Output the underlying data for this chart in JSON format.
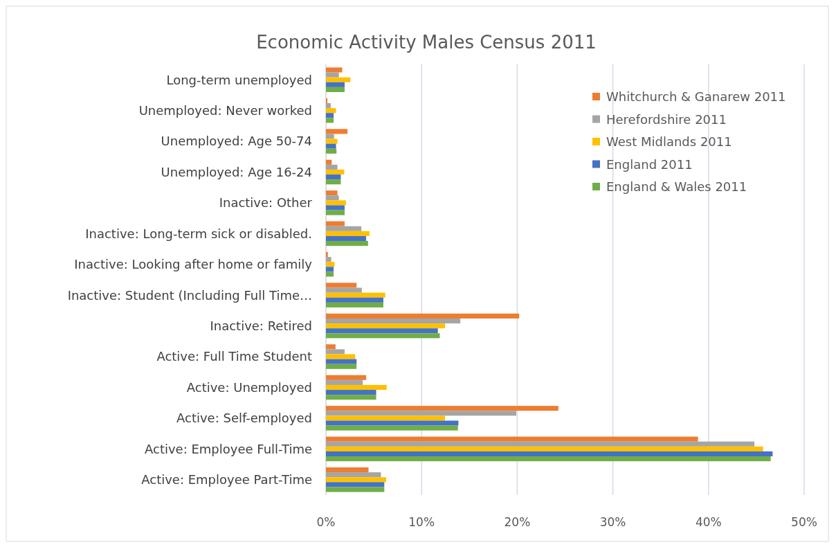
{
  "chart_data": {
    "type": "bar",
    "orientation": "horizontal",
    "title": "Economic Activity Males Census 2011",
    "categories": [
      "Long-term unemployed",
      "Unemployed: Never worked",
      "Unemployed: Age 50-74",
      "Unemployed: Age 16-24",
      "Inactive: Other",
      "Inactive: Long-term sick or disabled.",
      "Inactive: Looking after home or family",
      "Inactive: Student (Including Full Time…",
      "Inactive: Retired",
      "Active: Full Time Student",
      "Active: Unemployed",
      "Active: Self-employed",
      "Active: Employee Full-Time",
      "Active: Employee Part-Time"
    ],
    "series": [
      {
        "name": "Whitchurch & Ganarew 2011",
        "color": "#ed7d31",
        "values": [
          1.7,
          0.15,
          2.25,
          0.6,
          1.2,
          1.95,
          0.2,
          3.2,
          20.2,
          1.0,
          4.2,
          24.3,
          38.9,
          4.45
        ]
      },
      {
        "name": "Herefordshire 2011",
        "color": "#a5a5a5",
        "values": [
          1.35,
          0.5,
          0.85,
          1.2,
          1.35,
          3.7,
          0.55,
          3.75,
          14.05,
          1.95,
          3.85,
          19.9,
          44.8,
          5.75
        ]
      },
      {
        "name": "West Midlands 2011",
        "color": "#ffc000",
        "values": [
          2.55,
          1.05,
          1.2,
          1.9,
          2.1,
          4.55,
          0.9,
          6.2,
          12.45,
          3.05,
          6.35,
          12.45,
          45.7,
          6.3
        ]
      },
      {
        "name": "England 2011",
        "color": "#4472c4",
        "values": [
          1.95,
          0.8,
          1.05,
          1.55,
          1.95,
          4.2,
          0.8,
          6.0,
          11.7,
          3.2,
          5.25,
          13.85,
          46.7,
          6.1
        ]
      },
      {
        "name": "England & Wales 2011",
        "color": "#70ad47",
        "values": [
          1.95,
          0.8,
          1.1,
          1.55,
          1.95,
          4.4,
          0.8,
          6.0,
          11.9,
          3.2,
          5.25,
          13.8,
          46.5,
          6.1
        ]
      }
    ],
    "xlim": [
      0,
      50
    ],
    "xticks": [
      {
        "value": 0,
        "label": "0%"
      },
      {
        "value": 10,
        "label": "10%"
      },
      {
        "value": 20,
        "label": "20%"
      },
      {
        "value": 30,
        "label": "30%"
      },
      {
        "value": 40,
        "label": "40%"
      },
      {
        "value": 50,
        "label": "50%"
      }
    ],
    "grid": "x",
    "legend": "top right"
  }
}
